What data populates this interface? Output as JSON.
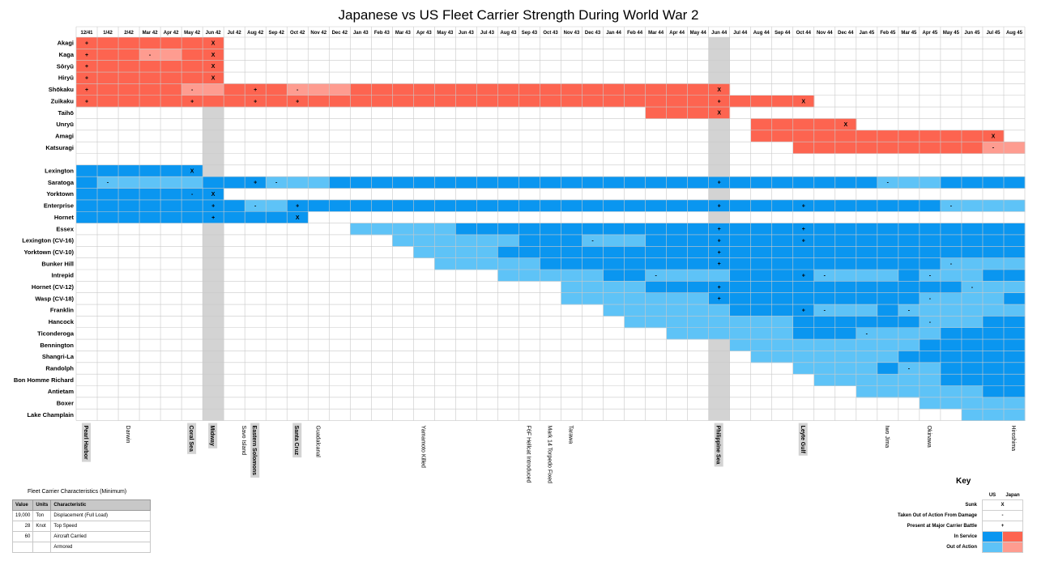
{
  "chart_data": {
    "type": "table",
    "title": "Japanese vs US Fleet Carrier Strength During World War 2",
    "months": [
      "12/41",
      "1/42",
      "2/42",
      "Mar 42",
      "Apr 42",
      "May 42",
      "Jun 42",
      "Jul 42",
      "Aug 42",
      "Sep 42",
      "Oct 42",
      "Nov 42",
      "Dec 42",
      "Jan 43",
      "Feb 43",
      "Mar 43",
      "Apr 43",
      "May 43",
      "Jun 43",
      "Jul 43",
      "Aug 43",
      "Sep 43",
      "Oct 43",
      "Nov 43",
      "Dec 43",
      "Jan 44",
      "Feb 44",
      "Mar 44",
      "Apr 44",
      "May 44",
      "Jun 44",
      "Jul 44",
      "Aug 44",
      "Sep 44",
      "Oct 44",
      "Nov 44",
      "Dec 44",
      "Jan 45",
      "Feb 45",
      "Mar 45",
      "Apr 45",
      "May 45",
      "Jun 45",
      "Jul 45",
      "Aug 45"
    ],
    "highlighted_months": [
      "Jun 42",
      "Jun 44"
    ],
    "colors": {
      "jp_service": "#fd6450",
      "jp_out": "#fe9c90",
      "us_service": "#0a96f0",
      "us_out": "#5ec3f7",
      "highlight": "#d3d3d3",
      "grid": "#c9c9c9"
    },
    "japan": [
      {
        "name": "Akagi",
        "start": "12/41",
        "end": "Jun 42",
        "out": [],
        "marks": {
          "12/41": "+",
          "Jun 42": "X"
        }
      },
      {
        "name": "Kaga",
        "start": "12/41",
        "end": "Jun 42",
        "out": [
          [
            "Mar 42",
            "Apr 42"
          ]
        ],
        "marks": {
          "12/41": "+",
          "Mar 42": "-",
          "Jun 42": "X"
        }
      },
      {
        "name": "Sōryū",
        "start": "12/41",
        "end": "Jun 42",
        "out": [],
        "marks": {
          "12/41": "+",
          "Jun 42": "X"
        }
      },
      {
        "name": "Hiryū",
        "start": "12/41",
        "end": "Jun 42",
        "out": [],
        "marks": {
          "12/41": "+",
          "Jun 42": "X"
        }
      },
      {
        "name": "Shōkaku",
        "start": "12/41",
        "end": "Jun 44",
        "out": [
          [
            "May 42",
            "Jun 42"
          ],
          [
            "Oct 42",
            "Dec 42"
          ]
        ],
        "marks": {
          "12/41": "+",
          "May 42": "-",
          "Aug 42": "+",
          "Oct 42": "-",
          "Jun 44": "X"
        }
      },
      {
        "name": "Zuikaku",
        "start": "12/41",
        "end": "Oct 44",
        "out": [],
        "marks": {
          "12/41": "+",
          "May 42": "+",
          "Aug 42": "+",
          "Oct 42": "+",
          "Jun 44": "+",
          "Oct 44": "X"
        }
      },
      {
        "name": "Taihō",
        "start": "Mar 44",
        "end": "Jun 44",
        "out": [],
        "marks": {
          "Jun 44": "X"
        }
      },
      {
        "name": "Unryū",
        "start": "Aug 44",
        "end": "Dec 44",
        "out": [],
        "marks": {
          "Dec 44": "X"
        }
      },
      {
        "name": "Amagi",
        "start": "Aug 44",
        "end": "Jul 45",
        "out": [],
        "marks": {
          "Jul 45": "X"
        }
      },
      {
        "name": "Katsuragi",
        "start": "Oct 44",
        "end": "Aug 45",
        "out": [
          [
            "Jul 45",
            "Aug 45"
          ]
        ],
        "marks": {
          "Jul 45": "-"
        }
      }
    ],
    "us": [
      {
        "name": "Lexington",
        "start": "12/41",
        "end": "May 42",
        "out": [],
        "marks": {
          "May 42": "X"
        }
      },
      {
        "name": "Saratoga",
        "start": "12/41",
        "end": "Aug 45",
        "out": [
          [
            "1/42",
            "May 42"
          ],
          [
            "Sep 42",
            "Nov 42"
          ],
          [
            "Feb 45",
            "Apr 45"
          ]
        ],
        "marks": {
          "1/42": "-",
          "Aug 42": "+",
          "Sep 42": "-",
          "Jun 44": "+",
          "Feb 45": "-"
        }
      },
      {
        "name": "Yorktown",
        "start": "12/41",
        "end": "Jun 42",
        "out": [],
        "marks": {
          "May 42": "-",
          "Jun 42": "X"
        }
      },
      {
        "name": "Enterprise",
        "start": "12/41",
        "end": "Aug 45",
        "out": [
          [
            "Aug 42",
            "Sep 42"
          ],
          [
            "May 45",
            "Aug 45"
          ]
        ],
        "marks": {
          "Jun 42": "+",
          "Aug 42": "-",
          "Oct 42": "+",
          "Jun 44": "+",
          "Oct 44": "+",
          "May 45": "-"
        }
      },
      {
        "name": "Hornet",
        "start": "12/41",
        "end": "Oct 42",
        "out": [],
        "marks": {
          "Jun 42": "+",
          "Oct 42": "X"
        }
      },
      {
        "name": "Essex",
        "start": "Jan 43",
        "end": "Aug 45",
        "out": [
          [
            "Jan 43",
            "May 43"
          ]
        ],
        "marks": {
          "Jun 44": "+",
          "Oct 44": "+"
        }
      },
      {
        "name": "Lexington (CV-16)",
        "start": "Mar 43",
        "end": "Aug 45",
        "out": [
          [
            "Mar 43",
            "Aug 43"
          ],
          [
            "Dec 43",
            "Feb 44"
          ]
        ],
        "marks": {
          "Jun 44": "+",
          "Oct 44": "+",
          "Dec 43": "-"
        }
      },
      {
        "name": "Yorktown (CV-10)",
        "start": "Apr 43",
        "end": "Aug 45",
        "out": [
          [
            "Apr 43",
            "Jul 43"
          ]
        ],
        "marks": {
          "Jun 44": "+"
        }
      },
      {
        "name": "Bunker Hill",
        "start": "May 43",
        "end": "Aug 45",
        "out": [
          [
            "May 43",
            "Sep 43"
          ],
          [
            "May 45",
            "Aug 45"
          ]
        ],
        "marks": {
          "Jun 44": "+",
          "May 45": "-"
        }
      },
      {
        "name": "Intrepid",
        "start": "Aug 43",
        "end": "Aug 45",
        "out": [
          [
            "Aug 43",
            "Dec 43"
          ],
          [
            "Mar 44",
            "Jun 44"
          ],
          [
            "Nov 44",
            "Feb 45"
          ],
          [
            "Apr 45",
            "Jun 45"
          ]
        ],
        "marks": {
          "Mar 44": "-",
          "Oct 44": "+",
          "Nov 44": "-",
          "Apr 45": "-"
        }
      },
      {
        "name": "Hornet (CV-12)",
        "start": "Nov 43",
        "end": "Aug 45",
        "out": [
          [
            "Nov 43",
            "Feb 44"
          ],
          [
            "Jun 45",
            "Aug 45"
          ]
        ],
        "marks": {
          "Jun 44": "+",
          "Jun 45": "-"
        }
      },
      {
        "name": "Wasp (CV-18)",
        "start": "Nov 43",
        "end": "Aug 45",
        "out": [
          [
            "Nov 43",
            "May 44"
          ],
          [
            "Apr 45",
            "Jul 45"
          ]
        ],
        "marks": {
          "Jun 44": "+",
          "Apr 45": "-"
        }
      },
      {
        "name": "Franklin",
        "start": "Jan 44",
        "end": "Aug 45",
        "out": [
          [
            "Jan 44",
            "Jun 44"
          ],
          [
            "Nov 44",
            "Jan 45"
          ],
          [
            "Mar 45",
            "Aug 45"
          ]
        ],
        "marks": {
          "Oct 44": "+",
          "Nov 44": "-",
          "Mar 45": "-"
        }
      },
      {
        "name": "Hancock",
        "start": "Feb 44",
        "end": "Aug 45",
        "out": [
          [
            "Feb 44",
            "Sep 44"
          ],
          [
            "Apr 45",
            "Jun 45"
          ]
        ],
        "marks": {
          "Apr 45": "-"
        }
      },
      {
        "name": "Ticonderoga",
        "start": "Apr 44",
        "end": "Aug 45",
        "out": [
          [
            "Apr 44",
            "Sep 44"
          ],
          [
            "Jan 45",
            "Apr 45"
          ]
        ],
        "marks": {
          "Jan 45": "-"
        }
      },
      {
        "name": "Bennington",
        "start": "Jul 44",
        "end": "Aug 45",
        "out": [
          [
            "Jul 44",
            "Jan 45"
          ],
          [
            "Feb 45",
            "Mar 45"
          ]
        ],
        "marks": {}
      },
      {
        "name": "Shangri-La",
        "start": "Aug 44",
        "end": "Aug 45",
        "out": [
          [
            "Aug 44",
            "Feb 45"
          ]
        ],
        "marks": {}
      },
      {
        "name": "Randolph",
        "start": "Oct 44",
        "end": "Aug 45",
        "out": [
          [
            "Oct 44",
            "Jan 45"
          ],
          [
            "Mar 45",
            "Apr 45"
          ]
        ],
        "marks": {
          "Mar 45": "-"
        }
      },
      {
        "name": "Bon Homme Richard",
        "start": "Nov 44",
        "end": "Aug 45",
        "out": [
          [
            "Nov 44",
            "Apr 45"
          ]
        ],
        "marks": {}
      },
      {
        "name": "Antietam",
        "start": "Jan 45",
        "end": "Aug 45",
        "out": [
          [
            "Jan 45",
            "Jun 45"
          ]
        ],
        "marks": {}
      },
      {
        "name": "Boxer",
        "start": "Apr 45",
        "end": "Aug 45",
        "out": [
          [
            "Apr 45",
            "Aug 45"
          ]
        ],
        "marks": {}
      },
      {
        "name": "Lake Champlain",
        "start": "Jun 45",
        "end": "Aug 45",
        "out": [
          [
            "Jun 45",
            "Aug 45"
          ]
        ],
        "marks": {}
      }
    ],
    "events": [
      {
        "label": "Pearl Harbor",
        "month": "12/41",
        "boxed": true
      },
      {
        "label": "Darwin",
        "month": "2/42",
        "boxed": false
      },
      {
        "label": "Coral Sea",
        "month": "May 42",
        "boxed": true
      },
      {
        "label": "Midway",
        "month": "Jun 42",
        "boxed": true
      },
      {
        "label": "Savo Island",
        "month": "Aug 42",
        "boxed": false,
        "offset": -0.5
      },
      {
        "label": "Eastern Solomons",
        "month": "Aug 42",
        "boxed": true
      },
      {
        "label": "Santa Cruz",
        "month": "Oct 42",
        "boxed": true
      },
      {
        "label": "Guadalcanal",
        "month": "Nov 42",
        "boxed": false
      },
      {
        "label": "Yamamoto Killed",
        "month": "Apr 43",
        "boxed": false
      },
      {
        "label": "F6F Hellcat Introduced",
        "month": "Sep 43",
        "boxed": false
      },
      {
        "label": "Mark 14 Torpedo Fixed",
        "month": "Oct 43",
        "boxed": false
      },
      {
        "label": "Tarawa",
        "month": "Nov 43",
        "boxed": false
      },
      {
        "label": "Philippine Sea",
        "month": "Jun 44",
        "boxed": true
      },
      {
        "label": "Leyte Gulf",
        "month": "Oct 44",
        "boxed": true
      },
      {
        "label": "Iwo Jima",
        "month": "Feb 45",
        "boxed": false
      },
      {
        "label": "Okinawa",
        "month": "Apr 45",
        "boxed": false
      },
      {
        "label": "Hiroshima",
        "month": "Aug 45",
        "boxed": false
      }
    ]
  },
  "characteristics": {
    "title": "Fleet Carrier Characteristics (Minimum)",
    "headers": [
      "Value",
      "Units",
      "Characteristic"
    ],
    "rows": [
      {
        "value": "19,000",
        "units": "Ton",
        "characteristic": "Displacement (Full Load)"
      },
      {
        "value": "28",
        "units": "Knot",
        "characteristic": "Top Speed"
      },
      {
        "value": "60",
        "units": "",
        "characteristic": "Aircraft Carried"
      },
      {
        "value": "",
        "units": "",
        "characteristic": "Armored"
      }
    ]
  },
  "key": {
    "title": "Key",
    "col_us": "US",
    "col_japan": "Japan",
    "sunk_label": "Sunk",
    "sunk_symbol": "X",
    "damaged_label": "Taken Out of Action From Damage",
    "damaged_symbol": "-",
    "battle_label": "Present at Major Carrier Battle",
    "battle_symbol": "+",
    "service_label": "In Service",
    "out_label": "Out of Action"
  }
}
